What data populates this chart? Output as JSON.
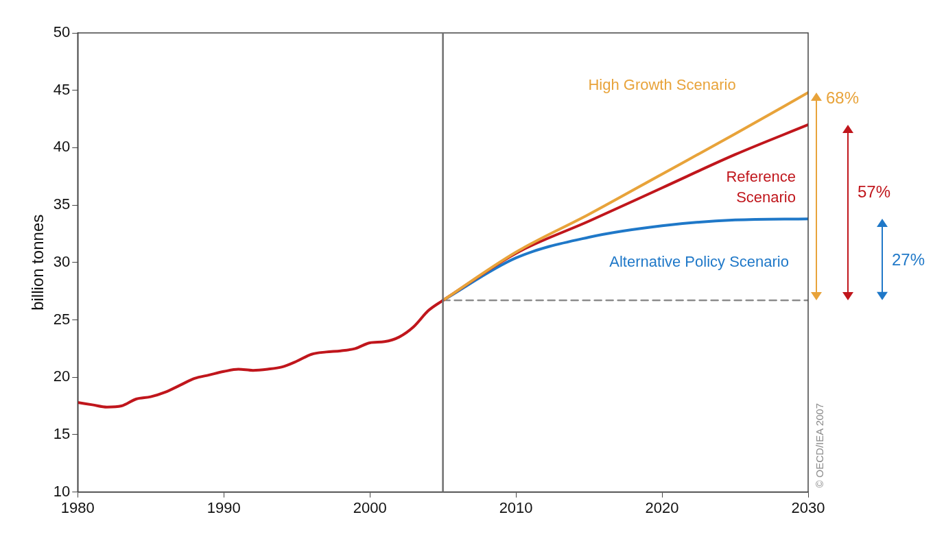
{
  "chart_data": {
    "type": "line",
    "ylabel": "billion tonnes",
    "xlim": [
      1980,
      2030
    ],
    "xticks": [
      1980,
      1990,
      2000,
      2010,
      2020,
      2030
    ],
    "ylim": [
      10,
      50
    ],
    "yticks": [
      10,
      15,
      20,
      25,
      30,
      35,
      40,
      45,
      50
    ],
    "grid": false,
    "legend": false,
    "marker": "none",
    "series": [
      {
        "color": "#c0161c",
        "x": [
          1980,
          1981,
          1982,
          1983,
          1984,
          1985,
          1986,
          1987,
          1988,
          1989,
          1990,
          1991,
          1992,
          1993,
          1994,
          1995,
          1996,
          1997,
          1998,
          1999,
          2000,
          2001,
          2002,
          2003,
          2004,
          2005
        ],
        "values": [
          17.8,
          17.6,
          17.4,
          17.5,
          18.1,
          18.3,
          18.7,
          19.3,
          19.9,
          20.2,
          20.5,
          20.7,
          20.6,
          20.7,
          20.9,
          21.4,
          22.0,
          22.2,
          22.3,
          22.5,
          23.0,
          23.1,
          23.5,
          24.4,
          25.8,
          26.7
        ]
      },
      {
        "name": "High Growth Scenario",
        "color": "#e8a33a",
        "x": [
          2005,
          2010,
          2015,
          2020,
          2025,
          2030
        ],
        "values": [
          26.7,
          30.9,
          34.2,
          37.7,
          41.2,
          44.8
        ]
      },
      {
        "name": "Reference Scenario",
        "color": "#c0161c",
        "x": [
          2005,
          2010,
          2015,
          2020,
          2025,
          2030
        ],
        "values": [
          26.7,
          30.8,
          33.6,
          36.5,
          39.4,
          42.0
        ]
      },
      {
        "name": "Alternative Policy Scenario",
        "color": "#1f78c8",
        "x": [
          2005,
          2010,
          2015,
          2020,
          2025,
          2030
        ],
        "values": [
          26.7,
          30.4,
          32.2,
          33.2,
          33.7,
          33.8
        ]
      },
      {
        "color": "#8c8c8c",
        "line_style": "dashed",
        "x": [
          2005,
          2030
        ],
        "values": [
          26.7,
          26.7
        ]
      }
    ],
    "ref_lines": [
      {
        "axis": "x",
        "value": 2005,
        "color": "#6e6e6e"
      }
    ],
    "annotations": [
      "68%",
      "57%",
      "27%",
      "© OECD/IEA 2007"
    ]
  }
}
